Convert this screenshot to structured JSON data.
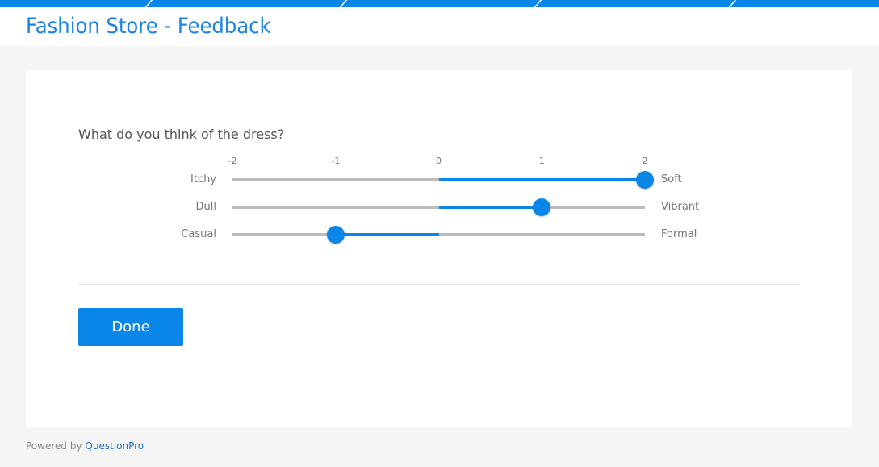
{
  "header": {
    "title": "Fashion Store - Feedback"
  },
  "survey": {
    "question": "What do you think of the dress?",
    "scale_ticks": [
      "-2",
      "-1",
      "0",
      "1",
      "2"
    ],
    "scale_min": -2,
    "scale_max": 2,
    "rows": [
      {
        "left": "Itchy",
        "right": "Soft",
        "value": 2
      },
      {
        "left": "Dull",
        "right": "Vibrant",
        "value": 1
      },
      {
        "left": "Casual",
        "right": "Formal",
        "value": -1
      }
    ],
    "done_label": "Done"
  },
  "footer": {
    "powered_by": "Powered by",
    "brand": "QuestionPro"
  },
  "colors": {
    "accent": "#0a86e8",
    "track": "#bbbbbb"
  }
}
